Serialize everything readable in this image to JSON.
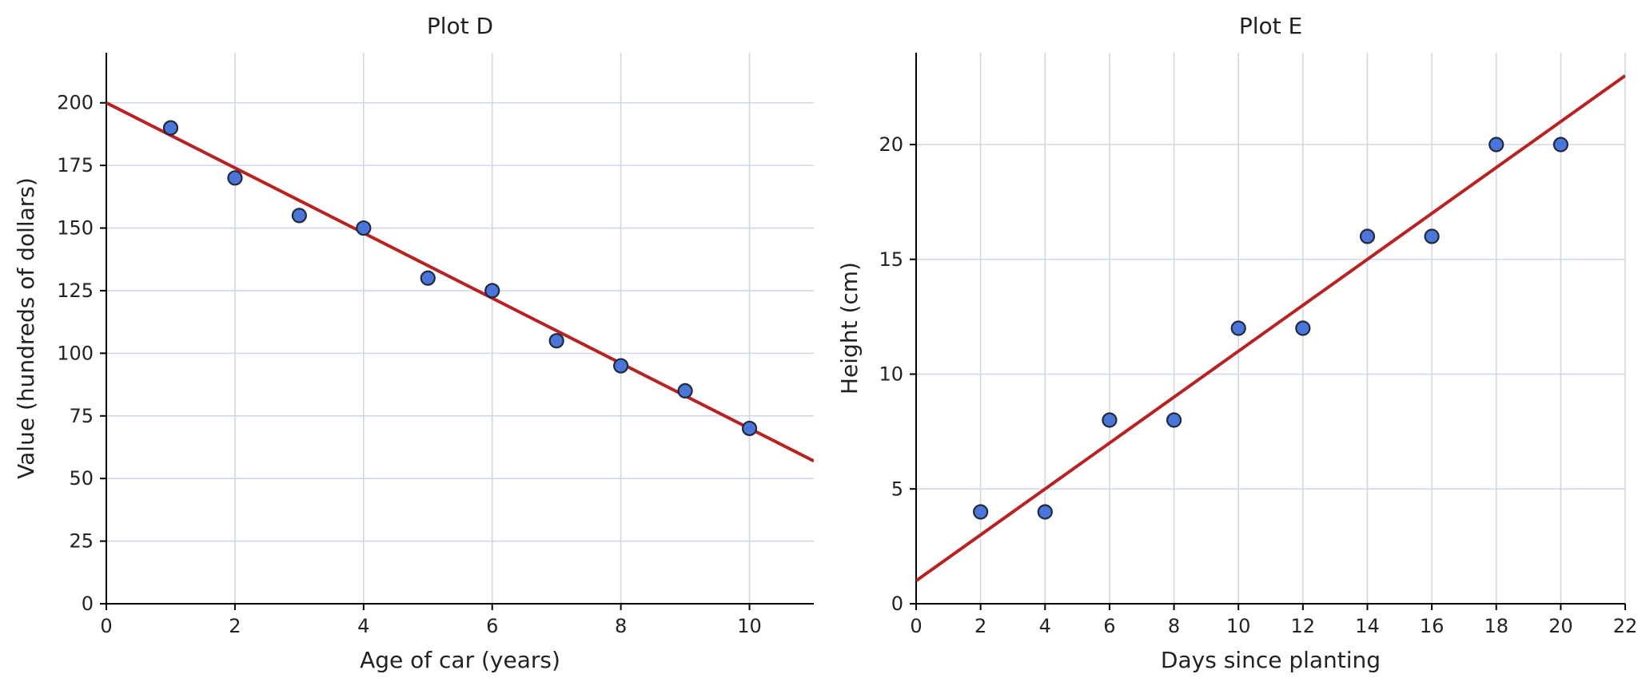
{
  "chart_data": [
    {
      "type": "scatter",
      "title": "Plot D",
      "xlabel": "Age of car (years)",
      "ylabel": "Value (hundreds of dollars)",
      "xlim": [
        0,
        11
      ],
      "ylim": [
        0,
        220
      ],
      "xticks": [
        0,
        2,
        4,
        6,
        8,
        10
      ],
      "yticks": [
        0,
        25,
        50,
        75,
        100,
        125,
        150,
        175,
        200
      ],
      "grid": true,
      "x": [
        1,
        2,
        3,
        4,
        5,
        6,
        7,
        8,
        9,
        10
      ],
      "y": [
        190,
        170,
        155,
        150,
        130,
        125,
        105,
        95,
        85,
        70
      ],
      "trend_line": {
        "x": [
          0,
          11
        ],
        "y": [
          200,
          57
        ]
      },
      "colors": {
        "points": "#4a76dc",
        "line": "#b82222"
      }
    },
    {
      "type": "scatter",
      "title": "Plot E",
      "xlabel": "Days since planting",
      "ylabel": "Height (cm)",
      "xlim": [
        0,
        22
      ],
      "ylim": [
        0,
        24
      ],
      "xticks": [
        0,
        2,
        4,
        6,
        8,
        10,
        12,
        14,
        16,
        18,
        20,
        22
      ],
      "yticks": [
        0,
        5,
        10,
        15,
        20
      ],
      "grid": true,
      "x": [
        2,
        4,
        6,
        8,
        10,
        12,
        14,
        16,
        18,
        20
      ],
      "y": [
        4,
        4,
        8,
        8,
        12,
        12,
        16,
        16,
        20,
        20
      ],
      "trend_line": {
        "x": [
          0,
          22
        ],
        "y": [
          1,
          23
        ]
      },
      "colors": {
        "points": "#4a76dc",
        "line": "#b82222"
      }
    }
  ]
}
